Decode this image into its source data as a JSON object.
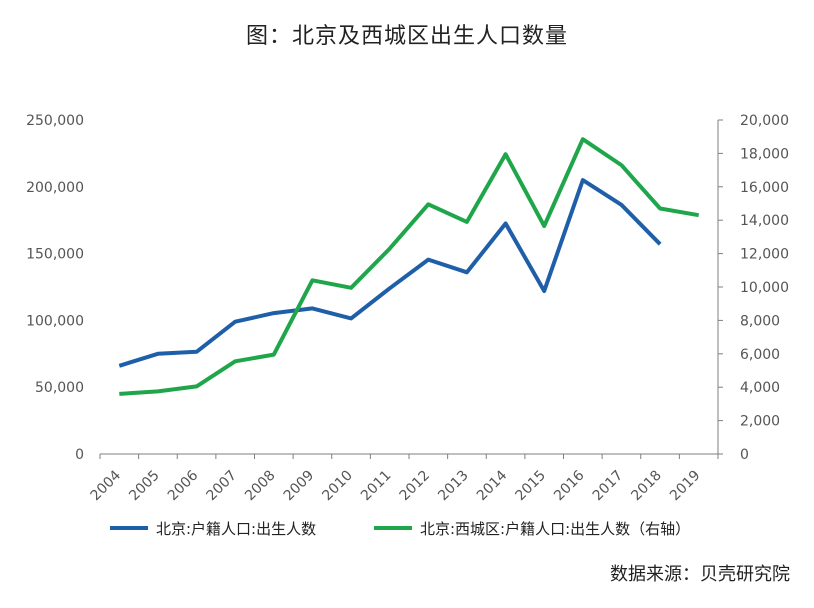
{
  "title": "图：北京及西城区出生人口数量",
  "source": "数据来源：贝壳研究院",
  "chart_data": {
    "type": "line",
    "x": [
      "2004",
      "2005",
      "2006",
      "2007",
      "2008",
      "2009",
      "2010",
      "2011",
      "2012",
      "2013",
      "2014",
      "2015",
      "2016",
      "2017",
      "2018",
      "2019"
    ],
    "y_left_ticks": [
      "0",
      "50,000",
      "100,000",
      "150,000",
      "200,000",
      "250,000"
    ],
    "y_right_ticks": [
      "0",
      "2,000",
      "4,000",
      "6,000",
      "8,000",
      "10,000",
      "12,000",
      "14,000",
      "16,000",
      "18,000",
      "20,000"
    ],
    "y_left_range": [
      0,
      250000
    ],
    "y_right_range": [
      0,
      20000
    ],
    "grid": false,
    "legend_position": "bottom",
    "series": [
      {
        "name": "北京:户籍人口:出生人数",
        "axis": "left",
        "color": "#1f5fa8",
        "values": [
          66000,
          75000,
          76500,
          99000,
          105500,
          109000,
          101500,
          124000,
          145500,
          136000,
          172500,
          122000,
          205000,
          186500,
          157000,
          null
        ]
      },
      {
        "name": "北京:西城区:户籍人口:出生人数（右轴）",
        "axis": "right",
        "color": "#1fa64a",
        "values": [
          3600,
          3750,
          4050,
          5550,
          5950,
          10400,
          9950,
          12300,
          14950,
          13900,
          17950,
          13650,
          18850,
          17300,
          14700,
          14300
        ]
      }
    ]
  }
}
